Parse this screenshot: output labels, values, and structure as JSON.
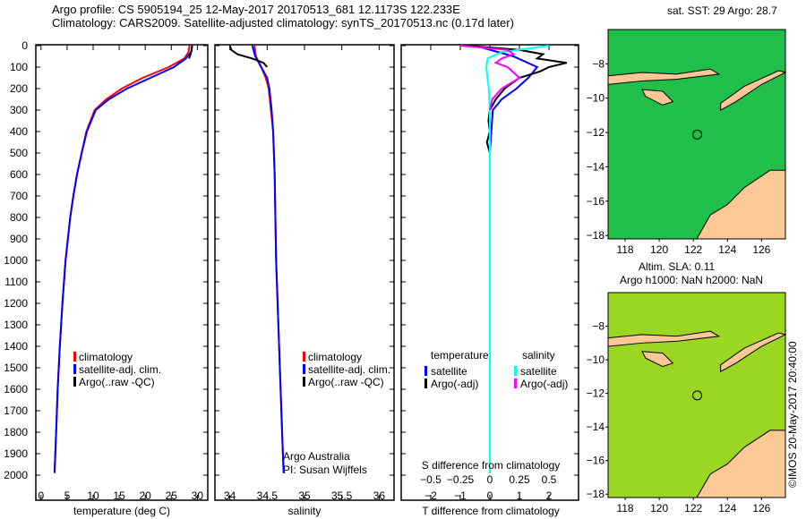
{
  "title": {
    "line1": "Argo profile: CS 5905194_25 12-May-2017 20170513_681 12.1173S 122.233E",
    "line2": "Climatology: CARS2009. Satellite-adjusted climatology: synTS_20170513.nc (0.17d later)"
  },
  "colors": {
    "climatology": "#ff0000",
    "satellite": "#0000ff",
    "argo": "#000000",
    "sal_sat": "#00ffff",
    "sal_argo": "#ff00ff"
  },
  "chart_data": [
    {
      "type": "line",
      "xlabel": "temperature (deg C)",
      "ylabel": "",
      "xlim": [
        -1,
        32
      ],
      "ylim": [
        2000,
        0
      ],
      "xticks": [
        0,
        5,
        10,
        15,
        20,
        25,
        30
      ],
      "yticks": [
        0,
        100,
        200,
        300,
        400,
        500,
        600,
        700,
        800,
        900,
        1000,
        1100,
        1200,
        1300,
        1400,
        1500,
        1600,
        1700,
        1800,
        1900,
        2000
      ],
      "legend": [
        "climatology",
        "satellite-adj. clim.",
        "Argo(..raw -QC)"
      ],
      "series": [
        {
          "name": "climatology",
          "color": "#ff0000",
          "depth": [
            0,
            30,
            60,
            100,
            150,
            200,
            250,
            300,
            400,
            500,
            600,
            700,
            800,
            1000,
            1200,
            1400,
            1600,
            1800,
            1990
          ],
          "values": [
            28.5,
            28.3,
            27.5,
            24.5,
            19.5,
            15.5,
            12.5,
            10.3,
            8.7,
            7.8,
            6.9,
            6.2,
            5.6,
            4.7,
            4.1,
            3.6,
            3.2,
            2.9,
            2.6
          ]
        },
        {
          "name": "satellite-adj. clim.",
          "color": "#0000ff",
          "depth": [
            0,
            30,
            60,
            100,
            150,
            200,
            250,
            300,
            400,
            500,
            600,
            700,
            800,
            1000,
            1200,
            1400,
            1600,
            1800,
            1990
          ],
          "values": [
            29.0,
            28.8,
            27.8,
            25.5,
            21.0,
            16.5,
            13.0,
            10.5,
            8.8,
            7.8,
            6.9,
            6.2,
            5.6,
            4.7,
            4.1,
            3.6,
            3.2,
            2.9,
            2.6
          ]
        },
        {
          "name": "Argo(..raw -QC)",
          "color": "#000000",
          "depth": [
            0,
            20,
            40,
            60
          ],
          "values": [
            29.0,
            28.9,
            28.7,
            28.4
          ]
        }
      ]
    },
    {
      "type": "line",
      "xlabel": "salinity",
      "ylabel": "",
      "xlim": [
        33.8,
        36.2
      ],
      "ylim": [
        2000,
        0
      ],
      "xticks": [
        34,
        34.5,
        35,
        35.5,
        36
      ],
      "legend": [
        "climatology",
        "satellite-adj. clim.",
        "Argo(..raw -QC)"
      ],
      "annotation": [
        "Argo Australia",
        "PI: Susan Wijffels"
      ],
      "series": [
        {
          "name": "climatology",
          "color": "#ff0000",
          "depth": [
            0,
            50,
            100,
            150,
            200,
            300,
            400,
            600,
            800,
            1000,
            1200,
            1500,
            1800,
            1990
          ],
          "values": [
            34.33,
            34.35,
            34.42,
            34.48,
            34.52,
            34.55,
            34.58,
            34.6,
            34.61,
            34.62,
            34.64,
            34.67,
            34.7,
            34.72
          ]
        },
        {
          "name": "satellite-adj. clim.",
          "color": "#0000ff",
          "depth": [
            0,
            50,
            100,
            150,
            200,
            300,
            400,
            600,
            800,
            1000,
            1200,
            1500,
            1800,
            1990
          ],
          "values": [
            34.3,
            34.34,
            34.42,
            34.5,
            34.53,
            34.56,
            34.58,
            34.6,
            34.61,
            34.62,
            34.64,
            34.67,
            34.7,
            34.72
          ]
        },
        {
          "name": "Argo(..raw -QC)",
          "color": "#000000",
          "depth": [
            0,
            20,
            40,
            60,
            80,
            100
          ],
          "values": [
            34.0,
            34.02,
            34.1,
            34.3,
            34.45,
            34.5
          ]
        }
      ]
    },
    {
      "type": "line",
      "xlabel": "T difference from climatology",
      "x2label": "S difference from climatology",
      "xlim": [
        -3,
        3
      ],
      "x2lim": [
        -0.75,
        0.75
      ],
      "ylim": [
        2000,
        0
      ],
      "xticks": [
        -2,
        -1,
        0,
        1,
        2
      ],
      "x2ticks": [
        -0.5,
        -0.25,
        0,
        0.25,
        0.5
      ],
      "legend": {
        "temperature": "temperature",
        "salinity": "salinity",
        "items": [
          "satellite",
          "Argo(-adj)",
          "satellite",
          "Argo(-adj)"
        ]
      },
      "series": [
        {
          "name": "T satellite",
          "color": "#0000ff",
          "depth": [
            0,
            50,
            100,
            150,
            200,
            250,
            300,
            400,
            500,
            700,
            1000,
            1990
          ],
          "values": [
            -0.5,
            0.8,
            1.6,
            1.3,
            0.9,
            0.4,
            0.1,
            0.05,
            0.0,
            0.0,
            0.0,
            0.0
          ]
        },
        {
          "name": "T Argo(-adj)",
          "color": "#000000",
          "depth": [
            0,
            20,
            40,
            60,
            80,
            100,
            120,
            150,
            200,
            250,
            300,
            350,
            400,
            450,
            500
          ],
          "values": [
            -0.8,
            1.0,
            1.8,
            1.6,
            2.6,
            2.0,
            1.7,
            1.0,
            0.5,
            0.2,
            0.0,
            -0.05,
            0.0,
            -0.1,
            0.0
          ]
        },
        {
          "name": "S satellite",
          "color": "#00ffff",
          "depth": [
            0,
            30,
            60,
            100,
            200,
            300,
            500,
            1000,
            1990
          ],
          "values": [
            0.5,
            0.1,
            -0.02,
            -0.03,
            -0.01,
            0.0,
            0.0,
            0.0,
            0.0
          ]
        },
        {
          "name": "S Argo(-adj)",
          "color": "#ff00ff",
          "depth": [
            0,
            20,
            40,
            60,
            80,
            100,
            150,
            200,
            250,
            300
          ],
          "values": [
            -0.25,
            0.15,
            0.2,
            0.1,
            0.05,
            0.15,
            0.25,
            0.1,
            0.02,
            0.0
          ]
        }
      ]
    }
  ],
  "maps": [
    {
      "title": "sat. SST: 29 Argo: 28.7",
      "lon_ticks": [
        118,
        120,
        122,
        124,
        126
      ],
      "lat_ticks": [
        -8,
        -10,
        -12,
        -14,
        -16,
        -18
      ]
    },
    {
      "title1": "Altim. SLA: 0.11",
      "title2": "Argo h1000: NaN h2000: NaN",
      "lon_ticks": [
        118,
        120,
        122,
        124,
        126
      ],
      "lat_ticks": [
        -8,
        -10,
        -12,
        -14,
        -16,
        -18
      ]
    }
  ],
  "credit": "©IMOS 20-May-2017 20:40:00"
}
